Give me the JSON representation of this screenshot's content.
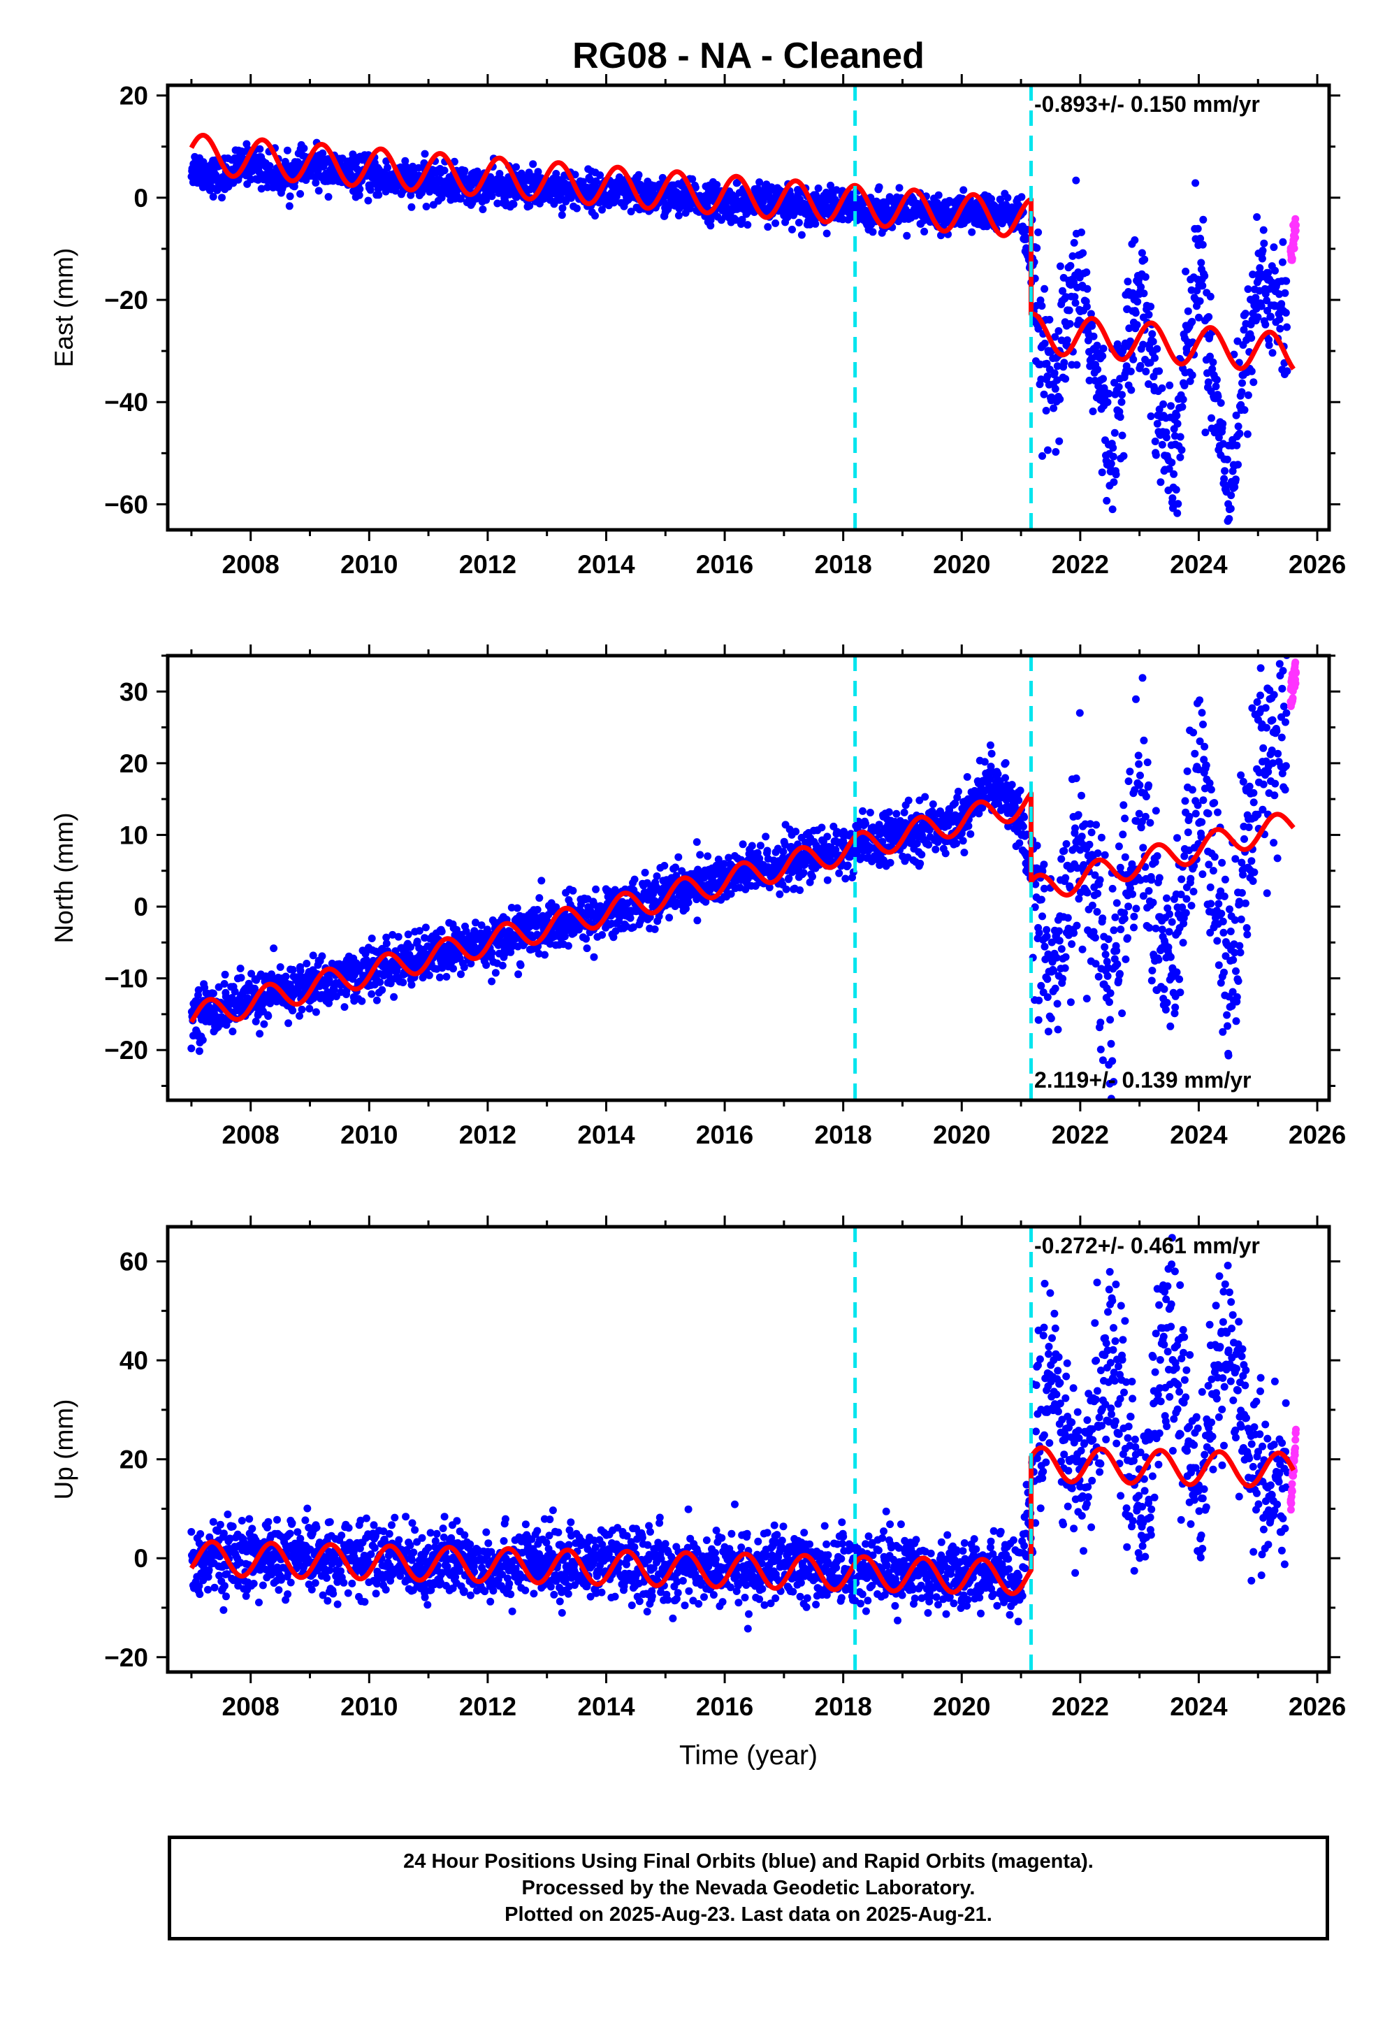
{
  "title": "RG08  - NA - Cleaned",
  "colors": {
    "final_orbits": "#0000ff",
    "rapid_orbits": "#ff33ff",
    "model": "#ff0000",
    "offset_lines": "#00e5ee",
    "axes": "#000000"
  },
  "caption": {
    "line1": "24 Hour Positions Using Final Orbits (blue) and Rapid Orbits (magenta).",
    "line2": "Processed by the Nevada Geodetic Laboratory.",
    "line3": "Plotted on 2025-Aug-23. Last data on 2025-Aug-21."
  },
  "chart_data": [
    {
      "type": "scatter",
      "ylabel": "East (mm)",
      "xlabel": "",
      "rate_label": "-0.893+/- 0.150 mm/yr",
      "rate_label_position": "top-right",
      "xlim": [
        2006.6,
        2026.2
      ],
      "ylim": [
        -65,
        22
      ],
      "xticks": [
        2008,
        2010,
        2012,
        2014,
        2016,
        2018,
        2020,
        2022,
        2024,
        2026
      ],
      "yticks": [
        -60,
        -40,
        -20,
        0,
        20
      ],
      "offset_lines_x": [
        2018.2,
        2021.17
      ],
      "series": [
        {
          "name": "Final Orbits (blue)",
          "x": [
            2007.0,
            2007.5,
            2008.0,
            2008.5,
            2009.0,
            2010.0,
            2011.0,
            2012.0,
            2013.0,
            2014.0,
            2015.0,
            2016.0,
            2017.0,
            2018.0,
            2019.0,
            2020.0,
            2021.0,
            2021.5,
            2022.0,
            2022.5,
            2023.0,
            2023.5,
            2024.0,
            2024.5,
            2025.0,
            2025.5
          ],
          "values": [
            6,
            4,
            7,
            4,
            6,
            4,
            3,
            2,
            2,
            1,
            0,
            -1,
            -1,
            -2,
            -3,
            -3,
            -3,
            -40,
            -15,
            -50,
            -15,
            -55,
            -12,
            -58,
            -15,
            -25
          ]
        },
        {
          "name": "Rapid Orbits (magenta)",
          "x": [
            2025.55,
            2025.6,
            2025.64
          ],
          "values": [
            -12,
            -8,
            -6
          ]
        },
        {
          "name": "Model",
          "segments": [
            {
              "x0": 2007.0,
              "x1": 2021.17,
              "y0": 8.6,
              "slope": -0.893,
              "amp": 3.8,
              "phase": 0.2
            },
            {
              "x0": 2021.17,
              "x1": 2025.6,
              "y0": -26.5,
              "slope": -0.893,
              "amp": 3.8,
              "phase": 0.2
            }
          ]
        }
      ]
    },
    {
      "type": "scatter",
      "ylabel": "North (mm)",
      "xlabel": "",
      "rate_label": "2.119+/- 0.139 mm/yr",
      "rate_label_position": "bottom-right",
      "xlim": [
        2006.6,
        2026.2
      ],
      "ylim": [
        -27,
        35
      ],
      "xticks": [
        2008,
        2010,
        2012,
        2014,
        2016,
        2018,
        2020,
        2022,
        2024,
        2026
      ],
      "yticks": [
        -20,
        -10,
        0,
        10,
        20,
        30
      ],
      "offset_lines_x": [
        2018.2,
        2021.17
      ],
      "series": [
        {
          "name": "Final Orbits (blue)",
          "x": [
            2007.0,
            2008.0,
            2009.0,
            2010.0,
            2011.0,
            2012.0,
            2013.0,
            2014.0,
            2015.0,
            2016.0,
            2017.0,
            2018.0,
            2019.0,
            2020.0,
            2020.5,
            2021.0,
            2021.5,
            2022.0,
            2022.5,
            2023.0,
            2023.5,
            2024.0,
            2024.5,
            2025.0,
            2025.5
          ],
          "values": [
            -15,
            -13,
            -11,
            -9,
            -7,
            -5,
            -3,
            -1,
            2,
            4,
            6,
            8,
            10,
            12,
            18,
            12,
            -10,
            10,
            -12,
            15,
            -12,
            18,
            -10,
            20,
            28
          ]
        },
        {
          "name": "Rapid Orbits (magenta)",
          "x": [
            2025.55,
            2025.6,
            2025.64
          ],
          "values": [
            29,
            31,
            33
          ]
        },
        {
          "name": "Model",
          "segments": [
            {
              "x0": 2007.0,
              "x1": 2021.17,
              "y0": -15.5,
              "slope": 2.119,
              "amp": 1.9,
              "phase": 0.3
            },
            {
              "x0": 2021.17,
              "x1": 2025.6,
              "y0": 2.2,
              "slope": 2.119,
              "amp": 1.9,
              "phase": 0.3
            }
          ]
        }
      ]
    },
    {
      "type": "scatter",
      "ylabel": "Up (mm)",
      "xlabel": "Time (year)",
      "rate_label": "-0.272+/- 0.461 mm/yr",
      "rate_label_position": "top-right",
      "xlim": [
        2006.6,
        2026.2
      ],
      "ylim": [
        -23,
        67
      ],
      "xticks": [
        2008,
        2010,
        2012,
        2014,
        2016,
        2018,
        2020,
        2022,
        2024,
        2026
      ],
      "yticks": [
        -20,
        0,
        20,
        40,
        60
      ],
      "offset_lines_x": [
        2018.2,
        2021.17
      ],
      "series": [
        {
          "name": "Final Orbits (blue)",
          "x": [
            2007.0,
            2008.0,
            2009.0,
            2010.0,
            2011.0,
            2012.0,
            2013.0,
            2014.0,
            2015.0,
            2016.0,
            2017.0,
            2018.0,
            2019.0,
            2020.0,
            2021.0,
            2021.5,
            2022.0,
            2022.5,
            2023.0,
            2023.5,
            2024.0,
            2024.5,
            2025.0,
            2025.5
          ],
          "values": [
            0,
            0,
            0,
            0,
            -1,
            -1,
            -1,
            -1,
            -2,
            -2,
            -2,
            -2,
            -2,
            -3,
            -3,
            40,
            10,
            45,
            10,
            45,
            15,
            45,
            15,
            12
          ]
        },
        {
          "name": "Rapid Orbits (magenta)",
          "x": [
            2025.55,
            2025.6,
            2025.64
          ],
          "values": [
            10,
            18,
            25
          ]
        },
        {
          "name": "Model",
          "segments": [
            {
              "x0": 2007.0,
              "x1": 2021.17,
              "y0": 0.0,
              "slope": -0.272,
              "amp": 3.4,
              "phase": 0.35
            },
            {
              "x0": 2021.17,
              "x1": 2025.6,
              "y0": 19.0,
              "slope": -0.272,
              "amp": 3.4,
              "phase": 0.35
            }
          ]
        }
      ]
    }
  ]
}
